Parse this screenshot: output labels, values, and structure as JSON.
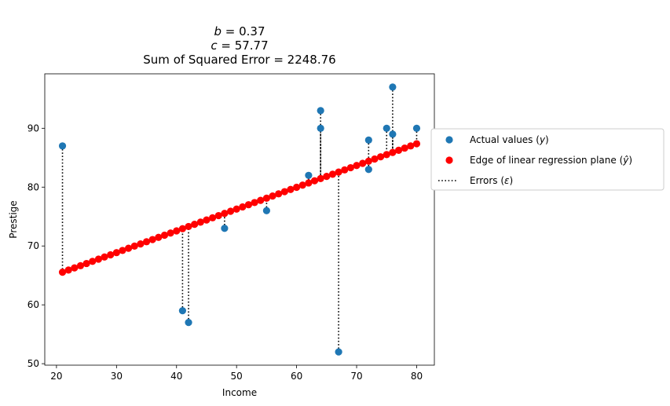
{
  "chart_data": {
    "type": "scatter",
    "title_lines": [
      {
        "italic": "b",
        "rest": " = 0.37"
      },
      {
        "italic": "c",
        "rest": " = 57.77"
      },
      {
        "italic": "",
        "rest": "Sum of Squared Error = 2248.76"
      }
    ],
    "xlabel": "Income",
    "ylabel": "Prestige",
    "xlim": [
      18.05,
      82.95
    ],
    "ylim": [
      49.75,
      99.25
    ],
    "xticks": [
      20,
      30,
      40,
      50,
      60,
      70,
      80
    ],
    "yticks": [
      50,
      60,
      70,
      80,
      90
    ],
    "b": 0.37,
    "c": 57.77,
    "actual_points": [
      {
        "x": 21,
        "y": 87
      },
      {
        "x": 41,
        "y": 59
      },
      {
        "x": 42,
        "y": 57
      },
      {
        "x": 48,
        "y": 73
      },
      {
        "x": 55,
        "y": 76
      },
      {
        "x": 62,
        "y": 82
      },
      {
        "x": 64,
        "y": 93
      },
      {
        "x": 64,
        "y": 90
      },
      {
        "x": 67,
        "y": 52
      },
      {
        "x": 72,
        "y": 88
      },
      {
        "x": 72,
        "y": 83
      },
      {
        "x": 75,
        "y": 90
      },
      {
        "x": 76,
        "y": 97
      },
      {
        "x": 76,
        "y": 89
      },
      {
        "x": 80,
        "y": 90
      }
    ],
    "line_x_range": [
      21,
      80
    ],
    "line_points_count": 60,
    "legend": {
      "placement": "right-outside",
      "entries": [
        {
          "pre": "Actual values (",
          "italic": "y",
          "post": ")",
          "marker": "dot",
          "color": "#1f77b4"
        },
        {
          "pre": "Edge of linear regression plane (",
          "italic": "ŷ",
          "post": ")",
          "marker": "dot",
          "color": "#ff0000"
        },
        {
          "pre": "Errors (",
          "italic": "ε",
          "post": ")",
          "marker": "dotted-line",
          "color": "#000000"
        }
      ]
    },
    "colors": {
      "actual": "#1f77b4",
      "regression": "#ff0000",
      "error": "#000000"
    },
    "grid": false
  }
}
